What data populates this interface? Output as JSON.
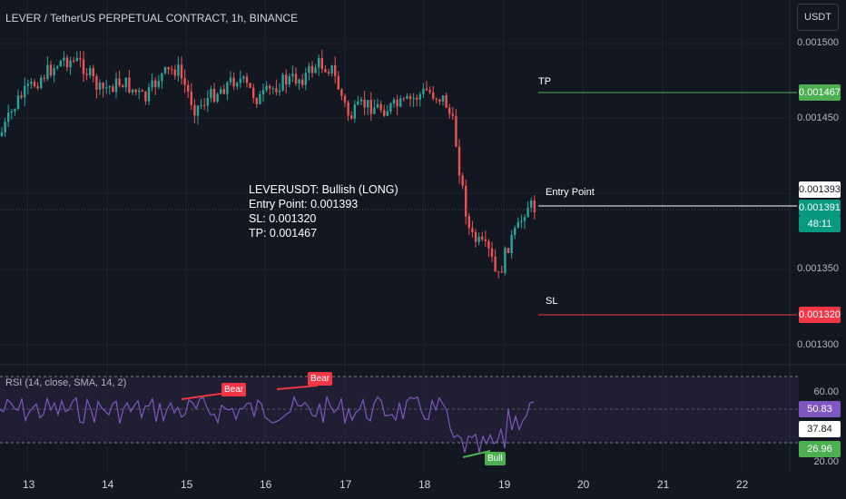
{
  "header": {
    "title": "LEVER / TetherUS PERPETUAL CONTRACT, 1h, BINANCE",
    "currency_button": "USDT"
  },
  "annotation": {
    "text": "LEVERUSDT: Bullish (LONG)\nEntry Point: 0.001393\nSL: 0.001320\nTP: 0.001467"
  },
  "levels": {
    "tp": {
      "label": "TP",
      "price": "0.001467",
      "color": "#4caf50"
    },
    "entry": {
      "label": "Entry Point",
      "price": "0.001393",
      "color": "#ffffff"
    },
    "sl": {
      "label": "SL",
      "price": "0.001320",
      "color": "#f23645"
    }
  },
  "price_axis": {
    "ticks": [
      "0.001500",
      "0.001450",
      "0.001350",
      "0.001300"
    ],
    "current_price": "0.001391",
    "countdown": "48:11"
  },
  "time_axis": {
    "ticks": [
      "13",
      "14",
      "15",
      "16",
      "17",
      "18",
      "19",
      "20",
      "21",
      "22"
    ]
  },
  "rsi": {
    "title": "RSI (14, close, SMA, 14, 2)",
    "upper_tick": "60.00",
    "lower_tick": "20.00",
    "rsi_value": "50.83",
    "ma_value": "37.84",
    "extra_value": "26.96",
    "divergences": [
      {
        "label": "Bear",
        "type": "bear"
      },
      {
        "label": "Bear",
        "type": "bear"
      },
      {
        "label": "Bull",
        "type": "bull"
      }
    ]
  },
  "colors": {
    "background": "#131722",
    "bull": "#26a69a",
    "bear": "#ef5350",
    "rsi_line": "#7e57c2",
    "rsi_band": "#2a2540"
  }
}
